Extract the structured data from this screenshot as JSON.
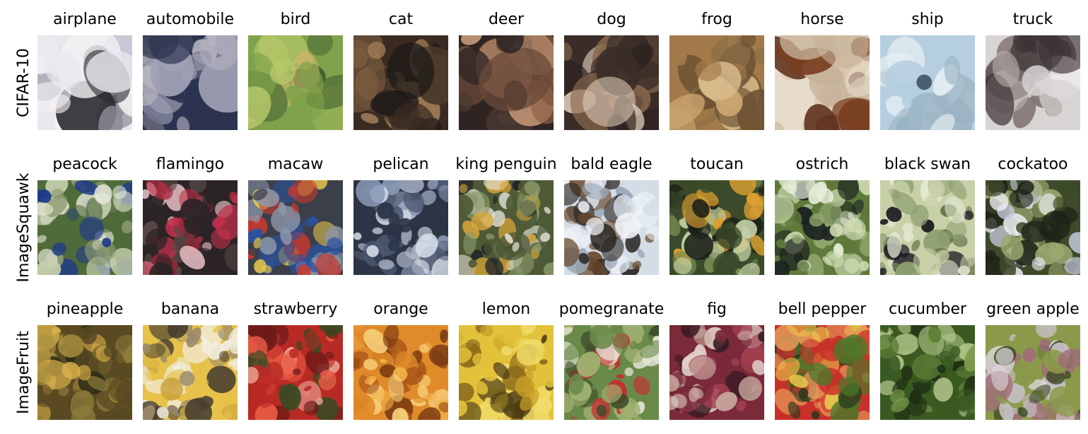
{
  "rows": [
    {
      "label": "CIFAR-10",
      "items": [
        {
          "label": "airplane",
          "icon": "airplane-image",
          "colors": [
            "#e9e6ee",
            "#2a2a2e",
            "#c9c4d4",
            "#8c8a95",
            "#f4f1f4"
          ]
        },
        {
          "label": "automobile",
          "icon": "automobile-image",
          "colors": [
            "#2c3350",
            "#6d6f7f",
            "#b5b3c0",
            "#3b3e55",
            "#9fa0b5"
          ]
        },
        {
          "label": "bird",
          "icon": "bird-image",
          "colors": [
            "#7fa24a",
            "#b7c96a",
            "#3f5a2c",
            "#5d7a3c",
            "#c8b46a"
          ]
        },
        {
          "label": "cat",
          "icon": "cat-image",
          "colors": [
            "#3a2b22",
            "#7a5a3f",
            "#1d1a18",
            "#a07c56",
            "#4d3b2c"
          ]
        },
        {
          "label": "deer",
          "icon": "deer-image",
          "colors": [
            "#2e2523",
            "#8e5f44",
            "#c79a79",
            "#4a3a33",
            "#6b4a38"
          ]
        },
        {
          "label": "dog",
          "icon": "dog-image",
          "colors": [
            "#3a2d27",
            "#8b6a4e",
            "#e4d2c0",
            "#5e4838",
            "#2a2220"
          ]
        },
        {
          "label": "frog",
          "icon": "frog-image",
          "colors": [
            "#a27a4a",
            "#caa46f",
            "#6b5032",
            "#d8bd8c",
            "#8b6d45"
          ]
        },
        {
          "label": "horse",
          "icon": "horse-image",
          "colors": [
            "#e7dccb",
            "#7a3e22",
            "#c6b39a",
            "#5a2e1a",
            "#d9c8ae"
          ]
        },
        {
          "label": "ship",
          "icon": "ship-image",
          "colors": [
            "#b5cfe0",
            "#6f8a9c",
            "#e6eef2",
            "#3f5566",
            "#9bb4c3"
          ]
        },
        {
          "label": "truck",
          "icon": "truck-image",
          "colors": [
            "#d8d4d4",
            "#7c6f6c",
            "#3e3537",
            "#b7aeac",
            "#efe9e9"
          ]
        }
      ]
    },
    {
      "label": "ImageSquawk",
      "items": [
        {
          "label": "peacock",
          "icon": "peacock-image",
          "colors": [
            "#4f6b3a",
            "#c6cfae",
            "#1f3a8a",
            "#8c9a70",
            "#e4e7d6"
          ]
        },
        {
          "label": "flamingo",
          "icon": "flamingo-image",
          "colors": [
            "#2b2426",
            "#c2304a",
            "#e8c0c6",
            "#5a4a48",
            "#8e2a36"
          ]
        },
        {
          "label": "macaw",
          "icon": "macaw-image",
          "colors": [
            "#3a3f4a",
            "#c83a2e",
            "#e9c94a",
            "#8d96a8",
            "#2a52a0"
          ]
        },
        {
          "label": "pelican",
          "icon": "pelican-image",
          "colors": [
            "#2c3446",
            "#8898b4",
            "#d7deea",
            "#4f5a72",
            "#aeb8ca"
          ]
        },
        {
          "label": "king penguin",
          "icon": "king-penguin-image",
          "colors": [
            "#4e5a36",
            "#e8e4d8",
            "#20232a",
            "#d8a53a",
            "#8a9a6a"
          ]
        },
        {
          "label": "bald eagle",
          "icon": "bald-eagle-image",
          "colors": [
            "#d4dce6",
            "#2a2522",
            "#9aa8b8",
            "#6a4a2e",
            "#eef2f6"
          ]
        },
        {
          "label": "toucan",
          "icon": "toucan-image",
          "colors": [
            "#3a4a2a",
            "#c7d4a8",
            "#1a1e18",
            "#e0a030",
            "#7a8e52"
          ]
        },
        {
          "label": "ostrich",
          "icon": "ostrich-image",
          "colors": [
            "#5e7a3a",
            "#d0dcb4",
            "#1c2220",
            "#94a870",
            "#e8eedc"
          ]
        },
        {
          "label": "black swan",
          "icon": "black-swan-image",
          "colors": [
            "#c8d0a8",
            "#1c1a20",
            "#8ea070",
            "#e6ead6",
            "#5a6a40"
          ]
        },
        {
          "label": "cockatoo",
          "icon": "cockatoo-image",
          "colors": [
            "#3e4a2a",
            "#eeeff4",
            "#9aa870",
            "#c4c8d8",
            "#1e2418"
          ]
        }
      ]
    },
    {
      "label": "ImageFruit",
      "items": [
        {
          "label": "pineapple",
          "icon": "pineapple-image",
          "colors": [
            "#5a4a22",
            "#d9b04a",
            "#2a2a18",
            "#8a7a3a",
            "#a8903e"
          ]
        },
        {
          "label": "banana",
          "icon": "banana-image",
          "colors": [
            "#e6c24a",
            "#f2ede0",
            "#4a4030",
            "#c8a03a",
            "#9a8a6a"
          ]
        },
        {
          "label": "strawberry",
          "icon": "strawberry-image",
          "colors": [
            "#b82a24",
            "#e85a44",
            "#3a4a22",
            "#f0b0a0",
            "#6a1a18"
          ]
        },
        {
          "label": "orange",
          "icon": "orange-image",
          "colors": [
            "#e08a2a",
            "#f2b24a",
            "#a85418",
            "#f6cf7a",
            "#7a3a12"
          ]
        },
        {
          "label": "lemon",
          "icon": "lemon-image",
          "colors": [
            "#e2c23a",
            "#f2dc6a",
            "#8a6a1a",
            "#c8a02a",
            "#4a3a14"
          ]
        },
        {
          "label": "pomegranate",
          "icon": "pomegranate-image",
          "colors": [
            "#6a8a4a",
            "#c82a30",
            "#e6e4d8",
            "#3a4a2a",
            "#a0b070"
          ]
        },
        {
          "label": "fig",
          "icon": "fig-image",
          "colors": [
            "#7a2a3a",
            "#c8a8a0",
            "#3a1a22",
            "#e2d0c8",
            "#a04050"
          ]
        },
        {
          "label": "bell pepper",
          "icon": "bell-pepper-image",
          "colors": [
            "#c8302a",
            "#4a7a2a",
            "#e6c84a",
            "#2a3a1a",
            "#e89a5a"
          ]
        },
        {
          "label": "cucumber",
          "icon": "cucumber-image",
          "colors": [
            "#3a5a22",
            "#7a9a4a",
            "#1e2e14",
            "#b0c488",
            "#5a7a34"
          ]
        },
        {
          "label": "green apple",
          "icon": "green-apple-image",
          "colors": [
            "#8a9a4a",
            "#c8c0c8",
            "#3a4a22",
            "#a06a7a",
            "#e0d8e0"
          ]
        }
      ]
    }
  ]
}
